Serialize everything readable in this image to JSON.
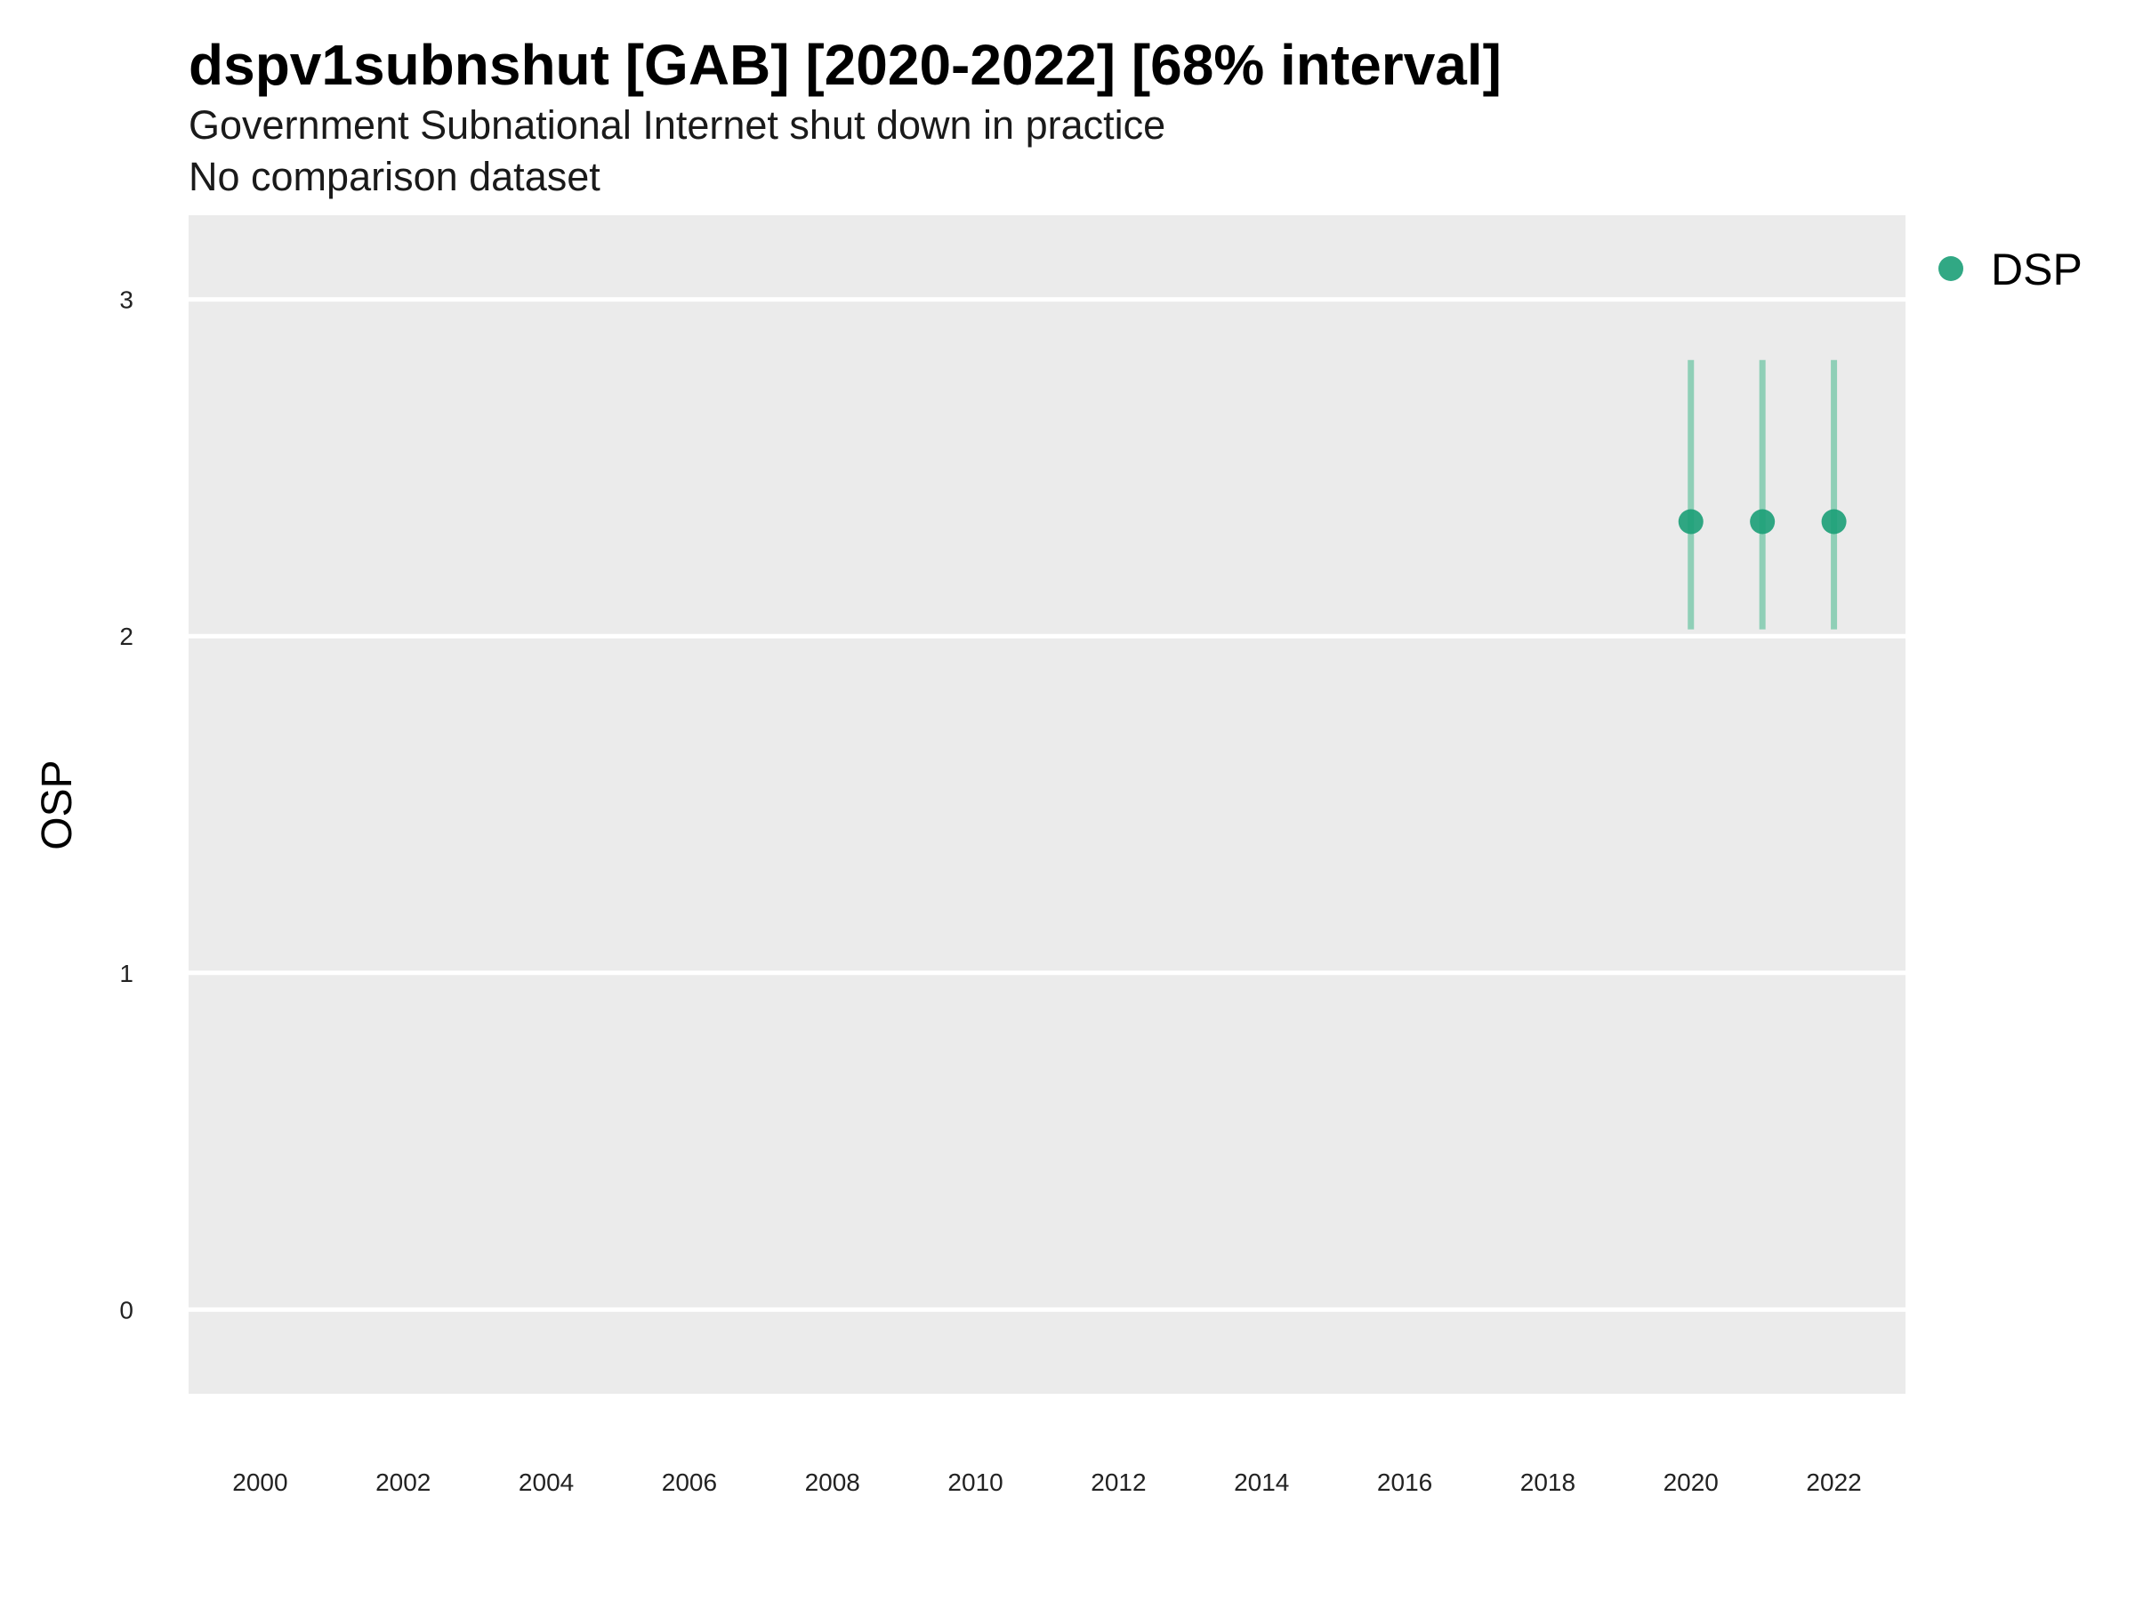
{
  "chart_data": {
    "type": "scatter",
    "title": "dspv1subnshut [GAB] [2020-2022] [68% interval]",
    "subtitle": "Government Subnational Internet shut down in practice",
    "caption": "No comparison dataset",
    "xlabel": "",
    "ylabel": "OSP",
    "xlim": [
      1999,
      2023
    ],
    "ylim": [
      -0.25,
      3.25
    ],
    "x_ticks": [
      2000,
      2002,
      2004,
      2006,
      2008,
      2010,
      2012,
      2014,
      2016,
      2018,
      2020,
      2022
    ],
    "y_ticks": [
      0,
      1,
      2,
      3
    ],
    "grid": true,
    "legend_position": "right",
    "series": [
      {
        "name": "DSP",
        "color": "#1b9e77",
        "points": [
          {
            "x": 2020,
            "y": 2.34,
            "lower": 2.02,
            "upper": 2.82
          },
          {
            "x": 2021,
            "y": 2.34,
            "lower": 2.02,
            "upper": 2.82
          },
          {
            "x": 2022,
            "y": 2.34,
            "lower": 2.02,
            "upper": 2.82
          }
        ]
      }
    ],
    "colors": {
      "panel_background": "#ebebeb",
      "grid": "#ffffff",
      "point": "#1b9e77",
      "interval": "#8fcfb7"
    }
  }
}
